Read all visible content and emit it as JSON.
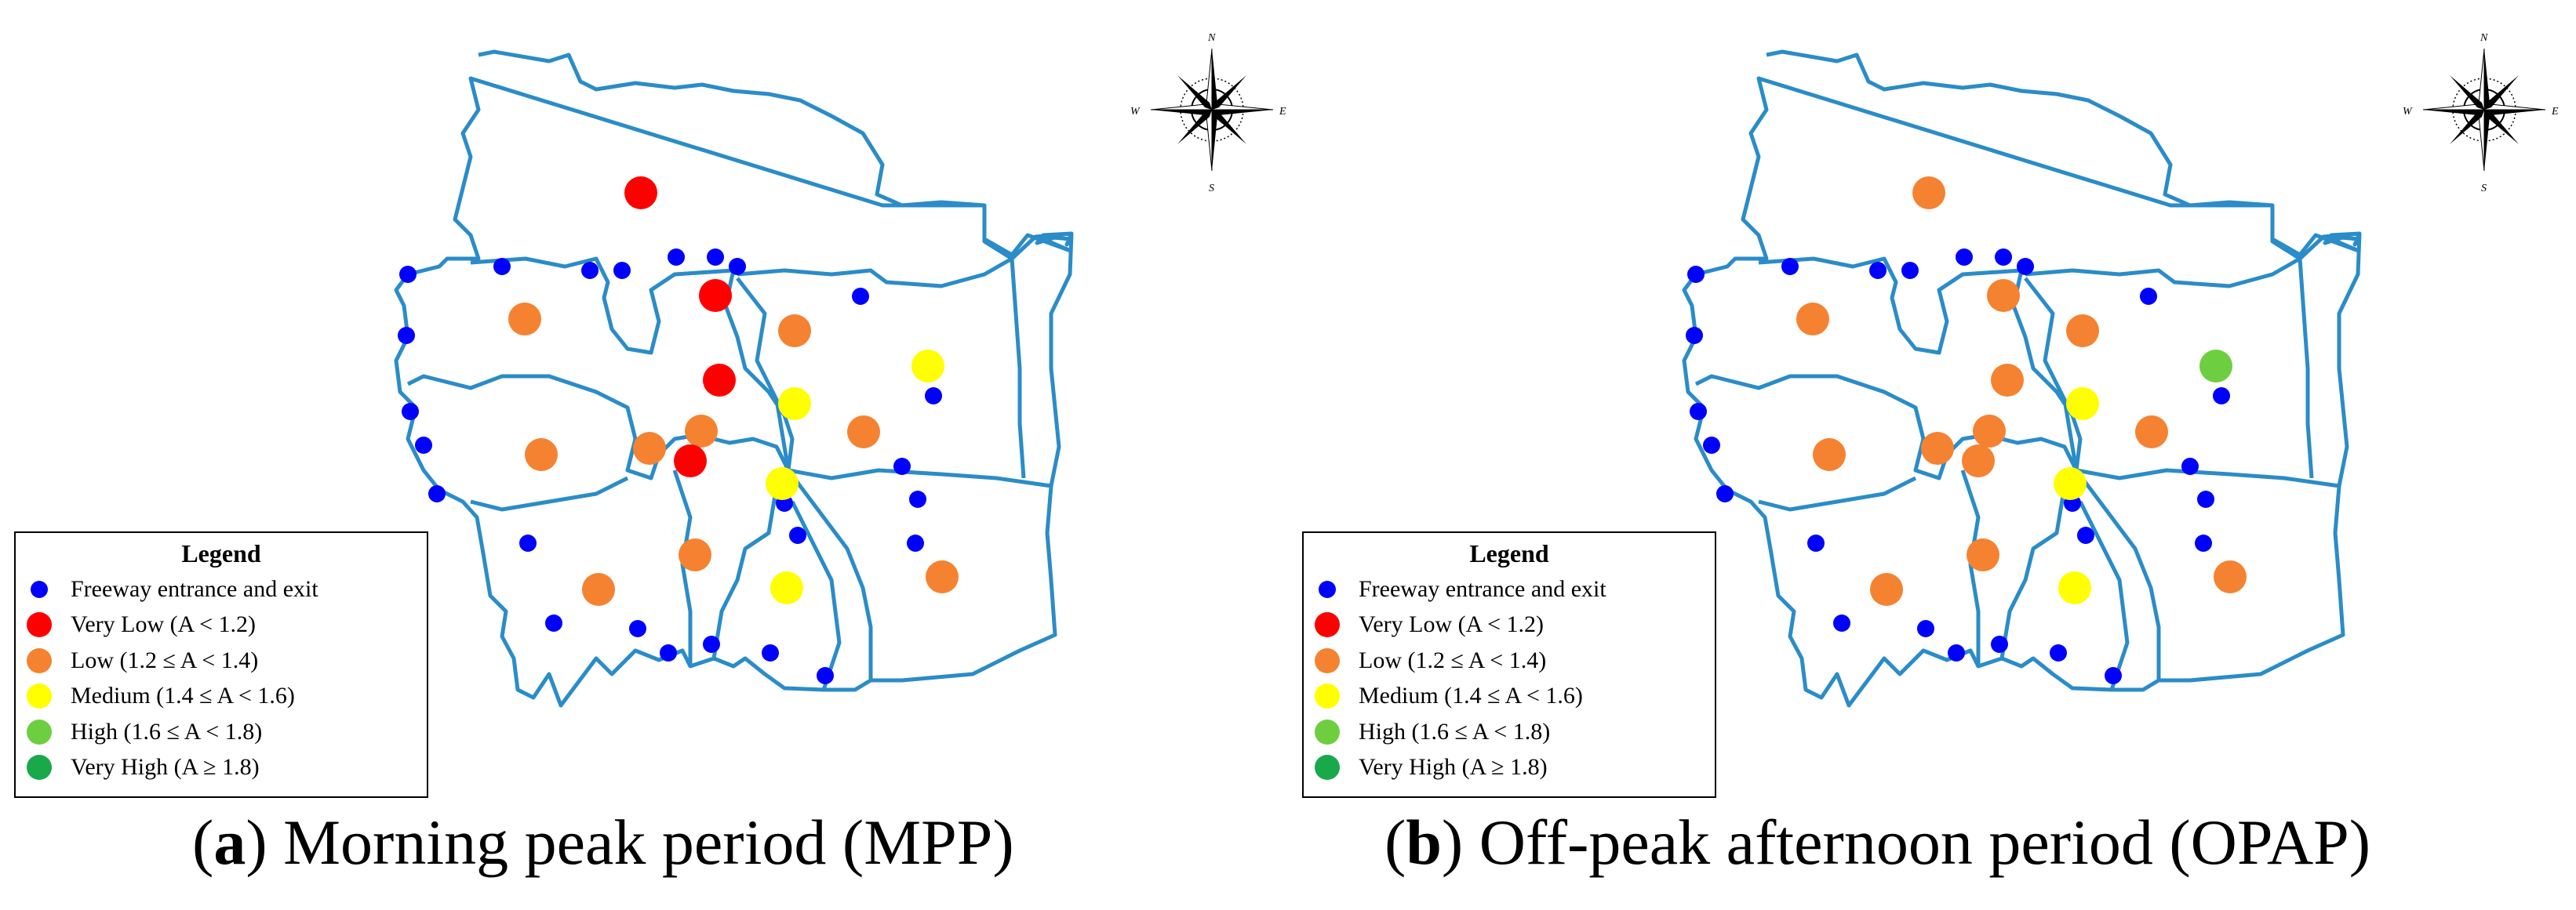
{
  "colors": {
    "boundary": "#2a8cc8",
    "freeway": "#0000ff",
    "very_low": "#ff0000",
    "low": "#f58231",
    "medium": "#ffff00",
    "high": "#6dcf3f",
    "very_high": "#19a84a"
  },
  "compass": {
    "n": "N",
    "s": "S",
    "e": "E",
    "w": "W"
  },
  "legend": {
    "title": "Legend",
    "items": [
      {
        "key": "freeway",
        "label": "Freeway entrance and exit"
      },
      {
        "key": "very_low",
        "label": "Very Low (A < 1.2)"
      },
      {
        "key": "low",
        "label": "Low (1.2 ≤ A < 1.4)"
      },
      {
        "key": "medium",
        "label": "Medium (1.4 ≤ A < 1.6)"
      },
      {
        "key": "high",
        "label": "High (1.6 ≤ A < 1.8)"
      },
      {
        "key": "very_high",
        "label": "Very High (A ≥ 1.8)"
      }
    ]
  },
  "panels": [
    {
      "id": "a",
      "caption_letter": "a",
      "caption_text": " Morning peak period (MPP)",
      "zone_classes": [
        "very_low",
        "low",
        "very_low",
        "very_low",
        "low",
        "medium",
        "medium",
        "low",
        "low",
        "low",
        "very_low",
        "low",
        "medium",
        "low",
        "low",
        "low",
        "medium"
      ]
    },
    {
      "id": "b",
      "caption_letter": "b",
      "caption_text": " Off-peak afternoon period (OPAP)",
      "zone_classes": [
        "low",
        "low",
        "low",
        "low",
        "low",
        "medium",
        "high",
        "low",
        "low",
        "low",
        "low",
        "low",
        "medium",
        "low",
        "low",
        "low",
        "medium"
      ]
    }
  ]
}
